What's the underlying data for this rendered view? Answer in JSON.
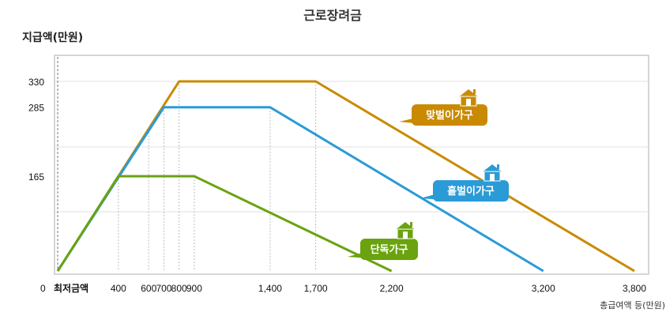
{
  "chart_data": {
    "type": "line",
    "title": "근로장려금",
    "ylabel": "지급액(만원)",
    "xlabel": "총급여액 등(만원)",
    "xlim": [
      0,
      3800
    ],
    "ylim": [
      0,
      330
    ],
    "x_ticks": [
      {
        "value": 0,
        "label": "최저금액"
      },
      {
        "value": 400,
        "label": "400"
      },
      {
        "value": 600,
        "label": "600"
      },
      {
        "value": 700,
        "label": "700"
      },
      {
        "value": 800,
        "label": "800"
      },
      {
        "value": 900,
        "label": "900"
      },
      {
        "value": 1400,
        "label": "1,400"
      },
      {
        "value": 1700,
        "label": "1,700"
      },
      {
        "value": 2200,
        "label": "2,200"
      },
      {
        "value": 3200,
        "label": "3,200"
      },
      {
        "value": 3800,
        "label": "3,800"
      }
    ],
    "y_ticks": [
      {
        "value": 0,
        "label": "0"
      },
      {
        "value": 165,
        "label": "165"
      },
      {
        "value": 285,
        "label": "285"
      },
      {
        "value": 330,
        "label": "330"
      }
    ],
    "grid": true,
    "series": [
      {
        "name": "맞벌이가구",
        "color": "#c98a00",
        "x": [
          0,
          800,
          1700,
          3800
        ],
        "y": [
          0,
          330,
          330,
          0
        ]
      },
      {
        "name": "홑벌이가구",
        "color": "#2a9bd6",
        "x": [
          0,
          700,
          1400,
          3200
        ],
        "y": [
          0,
          285,
          285,
          0
        ]
      },
      {
        "name": "단독가구",
        "color": "#6aa30f",
        "x": [
          0,
          400,
          900,
          2200
        ],
        "y": [
          0,
          165,
          165,
          0
        ]
      }
    ]
  }
}
